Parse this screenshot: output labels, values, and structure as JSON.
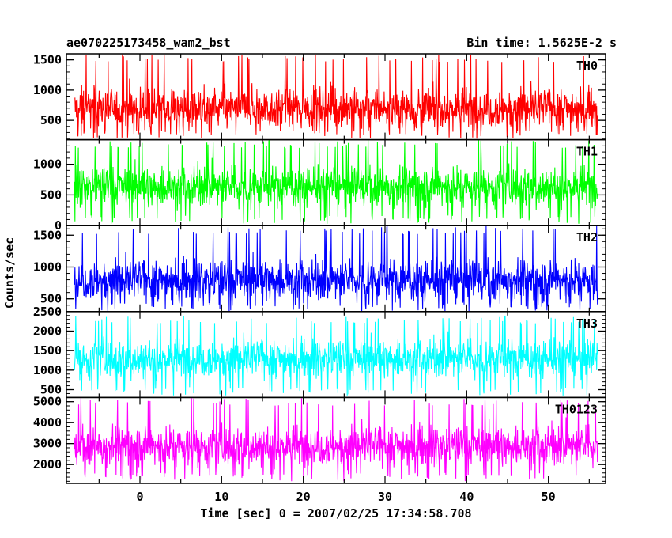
{
  "header": {
    "title": "ae070225173458_wam2_bst",
    "bin_time": "Bin time: 1.5625E-2 s"
  },
  "chart_data": {
    "type": "line",
    "title": "ae070225173458_wam2_bst",
    "subtitle": "Bin time: 1.5625E-2 s",
    "xlabel": "Time [sec] 0 = 2007/02/25 17:34:58.708",
    "ylabel": "Counts/sec",
    "xlim": [
      -9,
      57
    ],
    "x_ticks": [
      0,
      10,
      20,
      30,
      40,
      50
    ],
    "x_range_data": [
      -8,
      56
    ],
    "grid": false,
    "panels": [
      {
        "name": "TH0",
        "color": "#ff0000",
        "ylim": [
          180,
          1600
        ],
        "yticks": [
          500,
          1000,
          1500
        ],
        "mean": 700,
        "min": 200,
        "max": 1600
      },
      {
        "name": "TH1",
        "color": "#00ff00",
        "ylim": [
          0,
          1400
        ],
        "yticks": [
          0,
          500,
          1000
        ],
        "mean": 640,
        "min": 30,
        "max": 1400
      },
      {
        "name": "TH2",
        "color": "#0000ff",
        "ylim": [
          300,
          1650
        ],
        "yticks": [
          500,
          1000,
          1500
        ],
        "mean": 800,
        "min": 300,
        "max": 1650
      },
      {
        "name": "TH3",
        "color": "#00ffff",
        "ylim": [
          300,
          2500
        ],
        "yticks": [
          500,
          1000,
          1500,
          2000,
          2500
        ],
        "mean": 1300,
        "min": 350,
        "max": 2400
      },
      {
        "name": "TH0123",
        "color": "#ff00ff",
        "ylim": [
          1100,
          5200
        ],
        "yticks": [
          2000,
          3000,
          4000,
          5000
        ],
        "mean": 2900,
        "min": 1200,
        "max": 5200
      }
    ]
  }
}
